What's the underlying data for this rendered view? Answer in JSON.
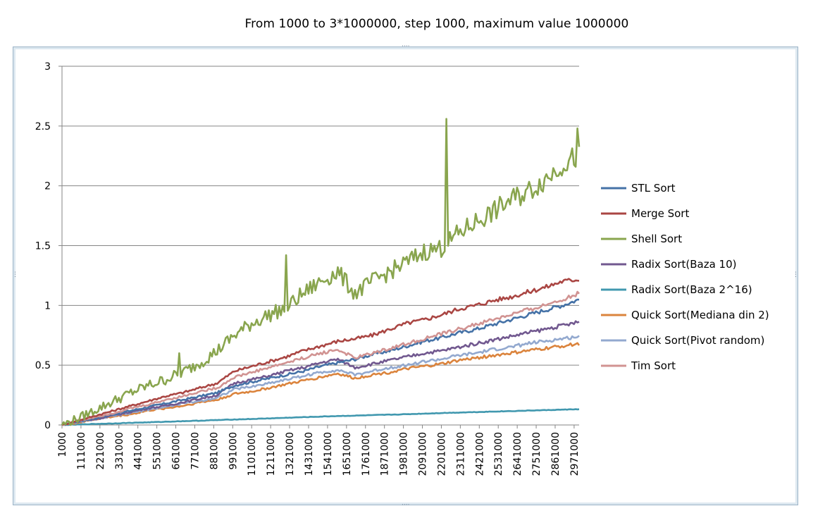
{
  "chart_data": {
    "type": "line",
    "title": "From 1000 to 3*1000000, step 1000, maximum value 1000000",
    "ylim": [
      0,
      3
    ],
    "yticks": [
      "0",
      "0.5",
      "1",
      "1.5",
      "2",
      "2.5",
      "3"
    ],
    "yticks_values": [
      0,
      0.5,
      1,
      1.5,
      2,
      2.5,
      3
    ],
    "xlim": [
      1000,
      3000000
    ],
    "xtick_labels": [
      "1000",
      "111000",
      "221000",
      "331000",
      "441000",
      "551000",
      "661000",
      "771000",
      "881000",
      "991000",
      "1101000",
      "1211000",
      "1321000",
      "1431000",
      "1541000",
      "1651000",
      "1761000",
      "1871000",
      "1981000",
      "2091000",
      "2201000",
      "2311000",
      "2421000",
      "2531000",
      "2641000",
      "2751000",
      "2861000",
      "2971000"
    ],
    "grid": true,
    "legend": "right",
    "x": [
      1000,
      100000,
      200000,
      300000,
      400000,
      500000,
      600000,
      700000,
      800000,
      900000,
      1000000,
      1100000,
      1200000,
      1300000,
      1400000,
      1500000,
      1600000,
      1700000,
      1800000,
      1900000,
      2000000,
      2100000,
      2200000,
      2300000,
      2400000,
      2500000,
      2600000,
      2700000,
      2800000,
      2900000,
      3000000
    ],
    "series": [
      {
        "name": "STL Sort",
        "color": "#4572A7",
        "values": [
          0,
          0.03,
          0.06,
          0.09,
          0.12,
          0.15,
          0.18,
          0.21,
          0.24,
          0.27,
          0.33,
          0.36,
          0.39,
          0.42,
          0.45,
          0.49,
          0.52,
          0.55,
          0.59,
          0.62,
          0.66,
          0.7,
          0.73,
          0.77,
          0.8,
          0.84,
          0.88,
          0.92,
          0.96,
          1.0,
          1.05
        ]
      },
      {
        "name": "Merge Sort",
        "color": "#AA4643",
        "values": [
          0,
          0.04,
          0.08,
          0.12,
          0.16,
          0.2,
          0.24,
          0.27,
          0.31,
          0.35,
          0.45,
          0.49,
          0.53,
          0.57,
          0.62,
          0.66,
          0.7,
          0.72,
          0.75,
          0.8,
          0.85,
          0.88,
          0.92,
          0.97,
          1.0,
          1.04,
          1.07,
          1.11,
          1.15,
          1.2,
          1.22
        ]
      },
      {
        "name": "Shell Sort",
        "color": "#89A54E",
        "values": [
          0,
          0.06,
          0.13,
          0.2,
          0.27,
          0.33,
          0.38,
          0.44,
          0.52,
          0.62,
          0.75,
          0.85,
          0.92,
          0.98,
          1.1,
          1.2,
          1.28,
          1.1,
          1.2,
          1.28,
          1.36,
          1.45,
          1.48,
          1.6,
          1.7,
          1.78,
          1.88,
          1.95,
          2.05,
          2.18,
          2.25
        ],
        "spikes": [
          [
            680000,
            0.6
          ],
          [
            1300000,
            1.42
          ],
          [
            2230000,
            2.56
          ],
          [
            2990000,
            2.48
          ]
        ]
      },
      {
        "name": "Radix Sort(Baza 10)",
        "color": "#71588F",
        "values": [
          0,
          0.03,
          0.05,
          0.08,
          0.11,
          0.14,
          0.16,
          0.19,
          0.22,
          0.25,
          0.35,
          0.38,
          0.41,
          0.45,
          0.48,
          0.52,
          0.55,
          0.48,
          0.51,
          0.54,
          0.57,
          0.6,
          0.62,
          0.65,
          0.68,
          0.71,
          0.74,
          0.77,
          0.8,
          0.83,
          0.86
        ]
      },
      {
        "name": "Radix Sort(Baza 2^16)",
        "color": "#4198AF",
        "values": [
          0,
          0.004,
          0.009,
          0.013,
          0.018,
          0.022,
          0.027,
          0.032,
          0.036,
          0.041,
          0.046,
          0.05,
          0.055,
          0.06,
          0.065,
          0.07,
          0.075,
          0.078,
          0.082,
          0.086,
          0.09,
          0.095,
          0.1,
          0.104,
          0.108,
          0.112,
          0.116,
          0.12,
          0.124,
          0.128,
          0.132
        ]
      },
      {
        "name": "Quick Sort(Mediana din 2)",
        "color": "#DB843D",
        "values": [
          0,
          0.02,
          0.05,
          0.07,
          0.09,
          0.12,
          0.14,
          0.16,
          0.19,
          0.21,
          0.26,
          0.28,
          0.31,
          0.34,
          0.37,
          0.4,
          0.43,
          0.39,
          0.42,
          0.44,
          0.47,
          0.49,
          0.51,
          0.54,
          0.56,
          0.58,
          0.6,
          0.62,
          0.64,
          0.66,
          0.68
        ]
      },
      {
        "name": "Quick Sort(Pivot random)",
        "color": "#93A9CF",
        "values": [
          0,
          0.025,
          0.05,
          0.075,
          0.1,
          0.13,
          0.15,
          0.18,
          0.2,
          0.23,
          0.3,
          0.32,
          0.35,
          0.38,
          0.41,
          0.44,
          0.46,
          0.42,
          0.45,
          0.48,
          0.5,
          0.53,
          0.55,
          0.58,
          0.6,
          0.63,
          0.65,
          0.68,
          0.7,
          0.72,
          0.74
        ]
      },
      {
        "name": "Tim Sort",
        "color": "#D19392",
        "values": [
          0,
          0.035,
          0.07,
          0.1,
          0.14,
          0.17,
          0.21,
          0.24,
          0.28,
          0.31,
          0.4,
          0.44,
          0.48,
          0.52,
          0.56,
          0.6,
          0.63,
          0.56,
          0.6,
          0.64,
          0.68,
          0.72,
          0.76,
          0.8,
          0.84,
          0.88,
          0.92,
          0.96,
          1.0,
          1.05,
          1.1
        ]
      }
    ]
  }
}
